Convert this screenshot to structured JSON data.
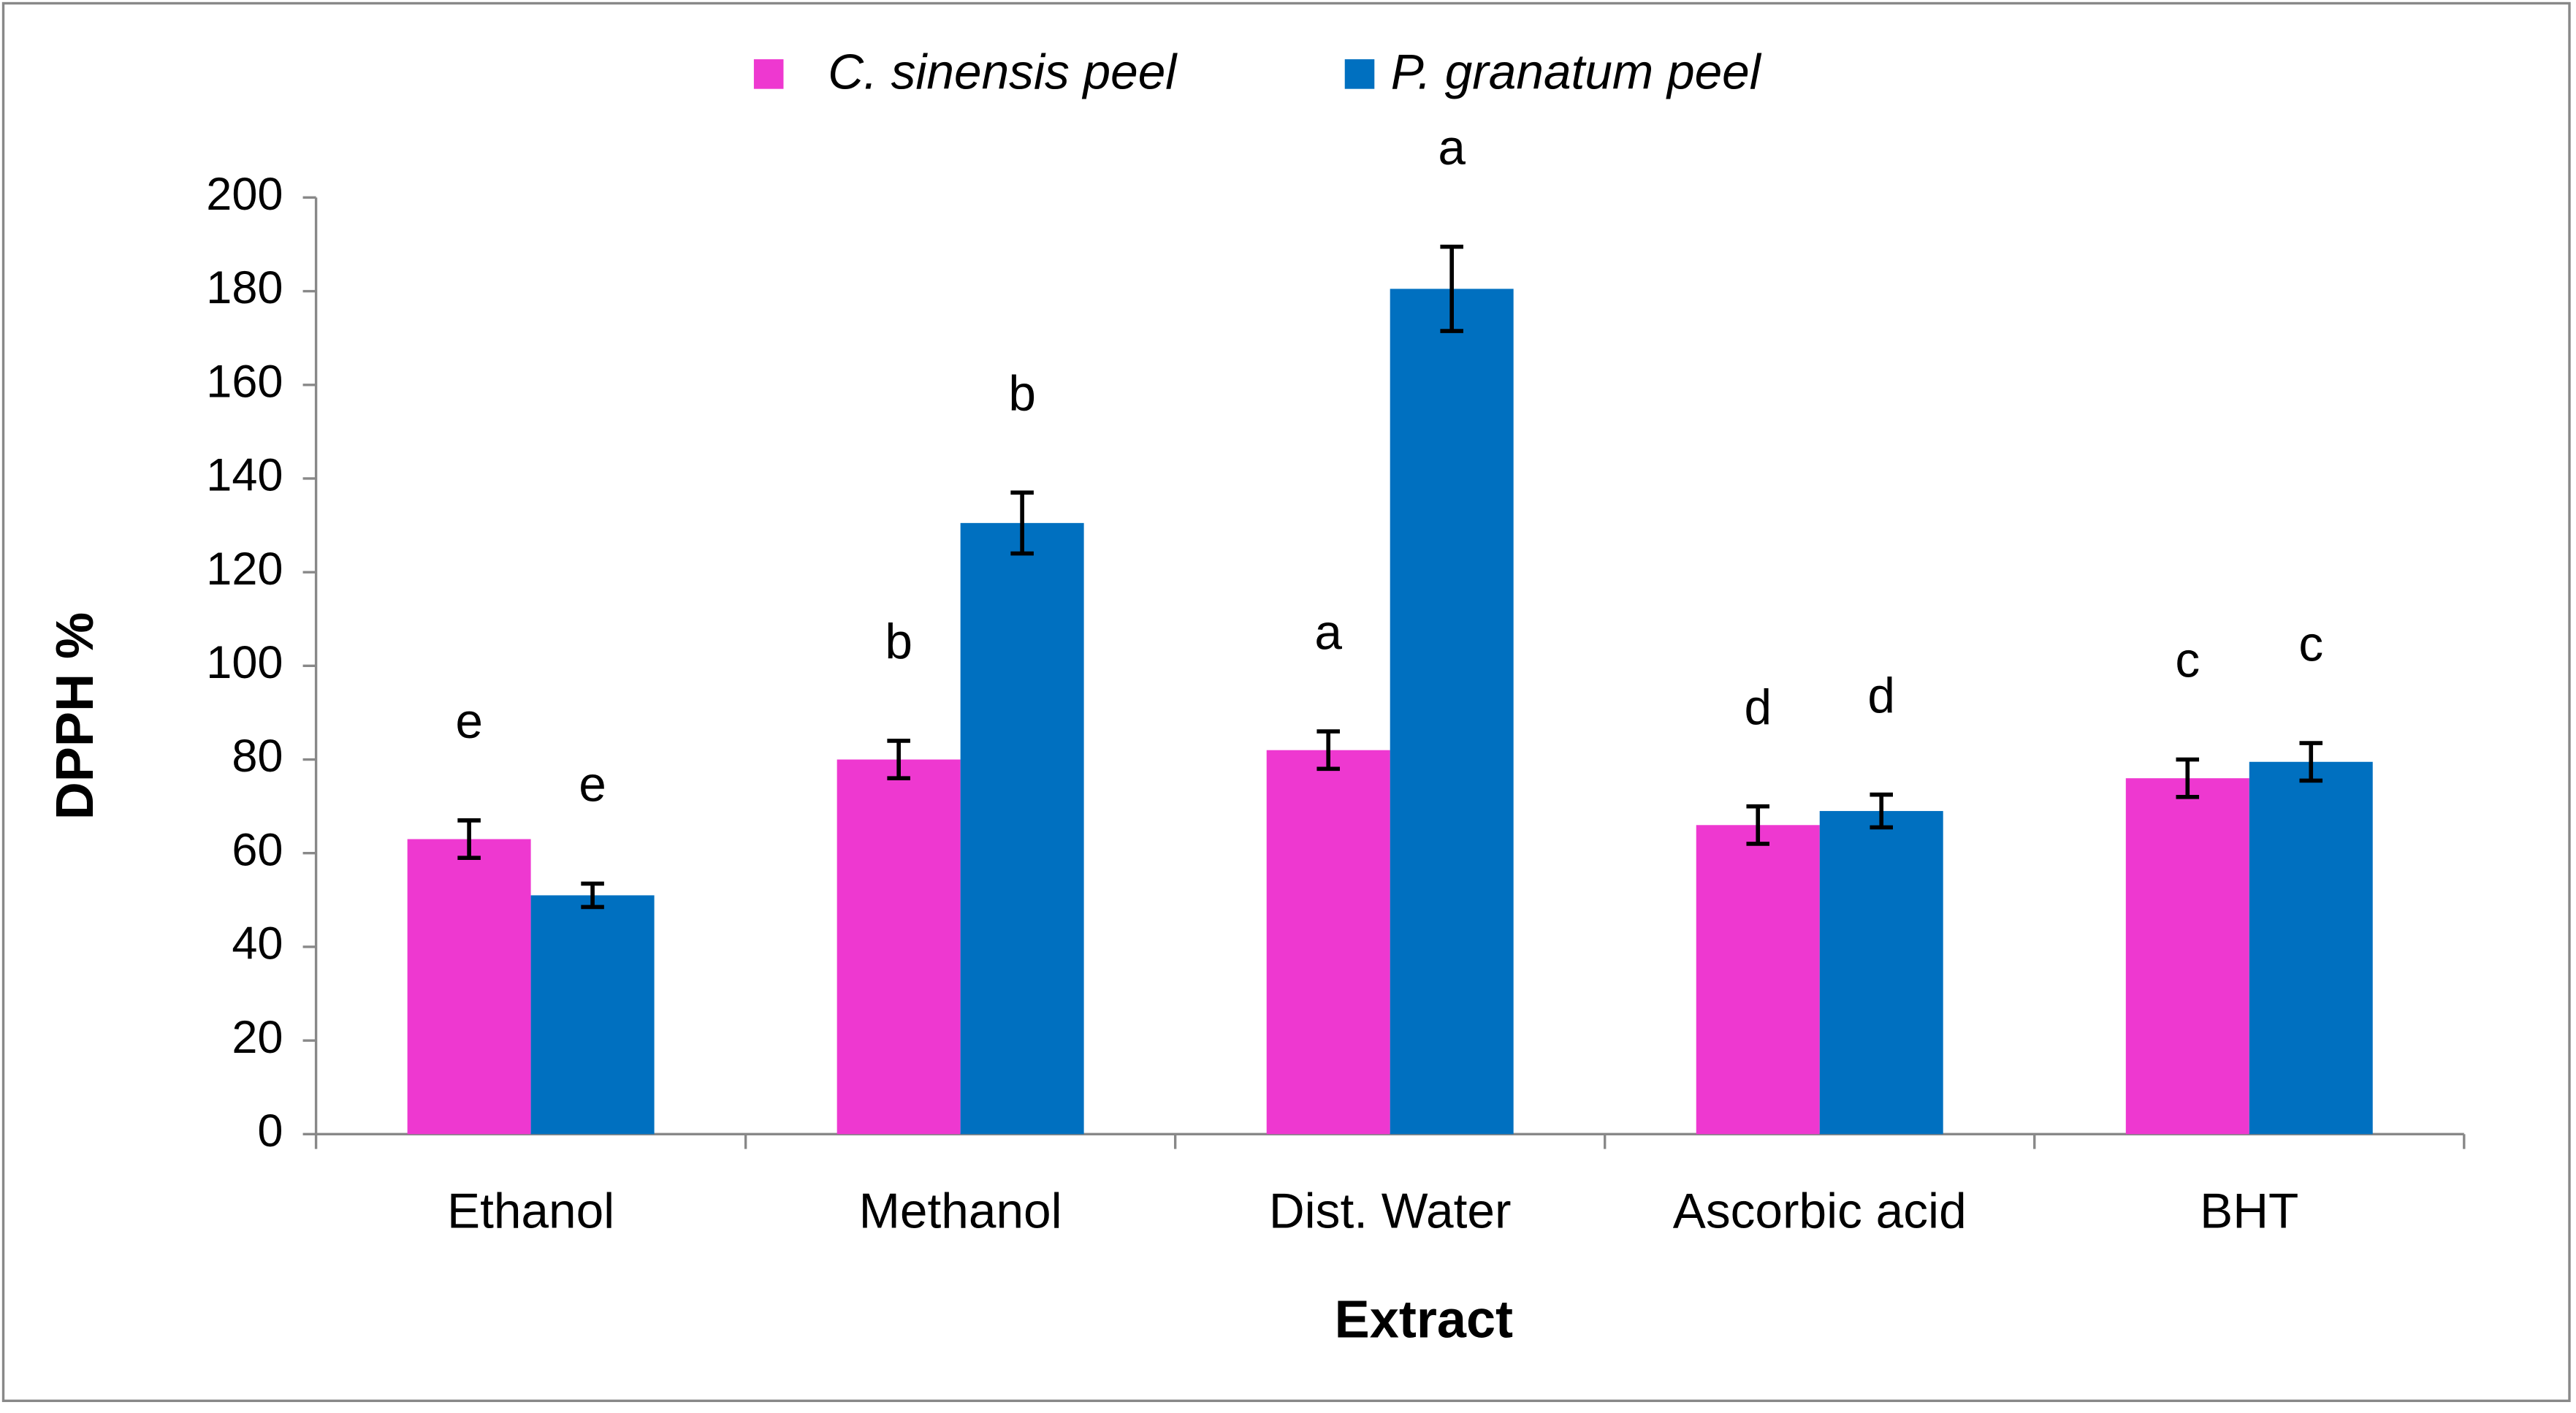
{
  "chart_data": {
    "type": "bar",
    "xlabel": "Extract",
    "ylabel": "DPPH %",
    "categories": [
      "Ethanol",
      "Methanol",
      "Dist. Water",
      "Ascorbic acid",
      "BHT"
    ],
    "series": [
      {
        "name": "C. sinensis peel",
        "color": "#ee38d0",
        "values": [
          63,
          80,
          82,
          66,
          76
        ],
        "errors": [
          4,
          4,
          4,
          4,
          4
        ],
        "labels": [
          "e",
          "b",
          "a",
          "d",
          "c"
        ]
      },
      {
        "name": "P. granatum peel",
        "color": "#0070c0",
        "values": [
          51,
          130.5,
          180.5,
          69,
          79.5
        ],
        "errors": [
          2.5,
          6.5,
          9,
          3.5,
          4
        ],
        "labels": [
          "e",
          "b",
          "a",
          "d",
          "c"
        ]
      }
    ],
    "ylim": [
      0,
      200
    ],
    "yticks": [
      0,
      20,
      40,
      60,
      80,
      100,
      120,
      140,
      160,
      180,
      200
    ],
    "legend": "top",
    "grid": false
  }
}
